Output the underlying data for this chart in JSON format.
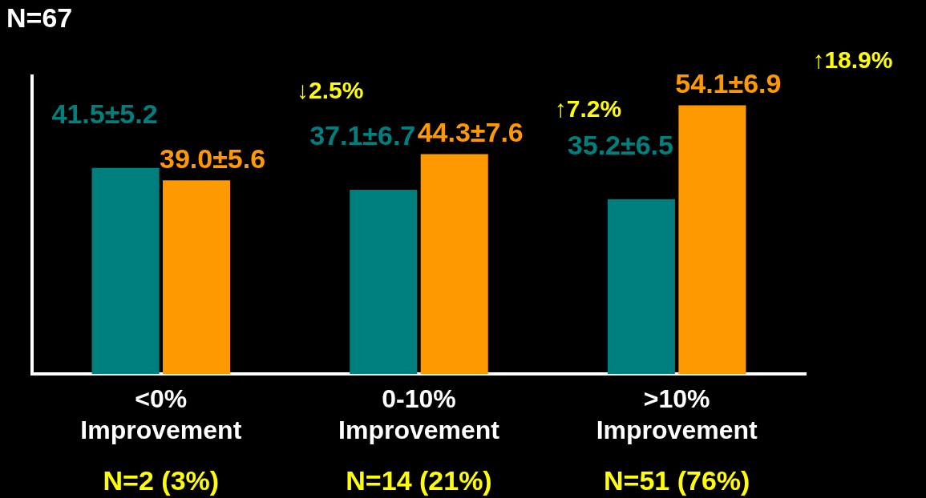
{
  "chart_data": {
    "type": "bar",
    "categories": [
      "<0%\nImprovement",
      "0-10%\nImprovement",
      ">10%\nImprovement"
    ],
    "series": [
      {
        "color": "#007f7f",
        "values": [
          41.5,
          37.1,
          35.2
        ],
        "value_labels": [
          "41.5±5.2",
          "37.1±6.7",
          "35.2±6.5"
        ]
      },
      {
        "color": "#ff9900",
        "values": [
          39.0,
          44.3,
          54.1
        ],
        "value_labels": [
          "39.0±5.6",
          "44.3±7.6",
          "54.1±6.9"
        ]
      }
    ],
    "ylim": [
      0,
      60
    ],
    "tick_labels": "x",
    "legend": false,
    "annotations": [
      "N=67",
      "N=2 (3%)",
      "N=14 (21%)",
      "N=51 (76%)",
      "↓2.5%",
      "↑7.2%",
      "↑18.9%"
    ]
  }
}
